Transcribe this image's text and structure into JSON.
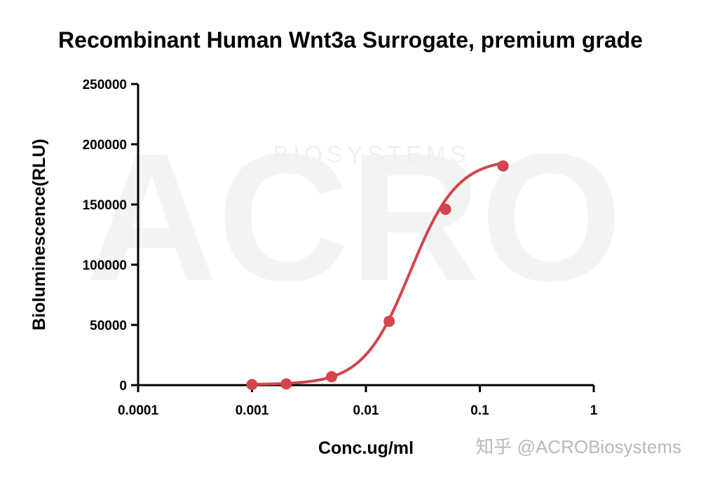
{
  "chart_data": {
    "type": "line",
    "title": "Recombinant Human Wnt3a Surrogate, premium grade",
    "xlabel": "Conc.ug/ml",
    "ylabel": "Bioluminescence(RLU)",
    "x_scale": "log",
    "xlim": [
      0.0001,
      1
    ],
    "ylim": [
      0,
      250000
    ],
    "x_ticks": [
      0.0001,
      0.001,
      0.01,
      0.1,
      1
    ],
    "x_tick_labels": [
      "0.0001",
      "0.001",
      "0.01",
      "0.1",
      "1"
    ],
    "y_ticks": [
      0,
      50000,
      100000,
      150000,
      200000,
      250000
    ],
    "y_tick_labels": [
      "0",
      "50000",
      "100000",
      "150000",
      "200000",
      "250000"
    ],
    "grid": false,
    "series": [
      {
        "color": "#d2454b",
        "x": [
          0.001,
          0.002,
          0.005,
          0.016,
          0.05,
          0.16
        ],
        "y": [
          500,
          1000,
          7000,
          53000,
          146000,
          182000
        ]
      }
    ],
    "fit_curve": {
      "bottom": 500,
      "top": 188000,
      "ec50": 0.0245,
      "hill": 2.1
    }
  },
  "watermark": {
    "text": "知乎 @ACROBiosystems",
    "logo_text": "ACRO",
    "logo_subtext": "BIOSYSTEMS"
  }
}
